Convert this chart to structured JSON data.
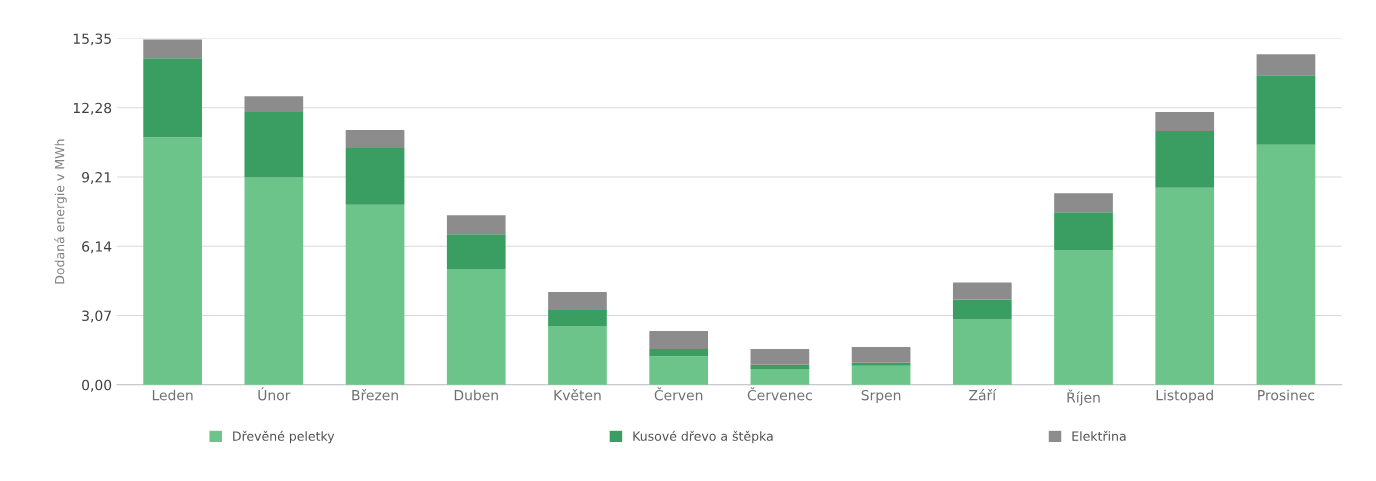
{
  "chart_data": {
    "type": "bar",
    "stacked": true,
    "ylabel": "Dodaná energie v MWh",
    "categories": [
      "Leden",
      "Únor",
      "Březen",
      "Duben",
      "Květen",
      "Červen",
      "Červenec",
      "Srpen",
      "Září",
      "Říjen",
      "Listopad",
      "Prosinec"
    ],
    "series": [
      {
        "name": "Dřevěné peletky",
        "color": "#6cc48a",
        "values": [
          10.97,
          9.19,
          7.98,
          5.13,
          2.61,
          1.26,
          0.7,
          0.84,
          2.89,
          5.97,
          8.73,
          10.64
        ]
      },
      {
        "name": "Kusové dřevo a štěpka",
        "color": "#3a9e63",
        "values": [
          3.5,
          2.9,
          2.52,
          1.54,
          0.7,
          0.33,
          0.19,
          0.14,
          0.89,
          1.68,
          2.52,
          3.08
        ]
      },
      {
        "name": "Elektřina",
        "color": "#8c8c8c",
        "values": [
          0.84,
          0.7,
          0.79,
          0.84,
          0.8,
          0.79,
          0.7,
          0.7,
          0.75,
          0.84,
          0.84,
          0.93
        ]
      }
    ],
    "ylim": [
      0,
      15.35
    ],
    "yticks": [
      {
        "value": 0,
        "label": "0,00"
      },
      {
        "value": 3.07,
        "label": "3,07"
      },
      {
        "value": 6.14,
        "label": "6,14"
      },
      {
        "value": 9.21,
        "label": "9,21"
      },
      {
        "value": 12.28,
        "label": "12,28"
      },
      {
        "value": 15.35,
        "label": "15,35"
      }
    ],
    "grid": "y",
    "legend": "bottom"
  }
}
